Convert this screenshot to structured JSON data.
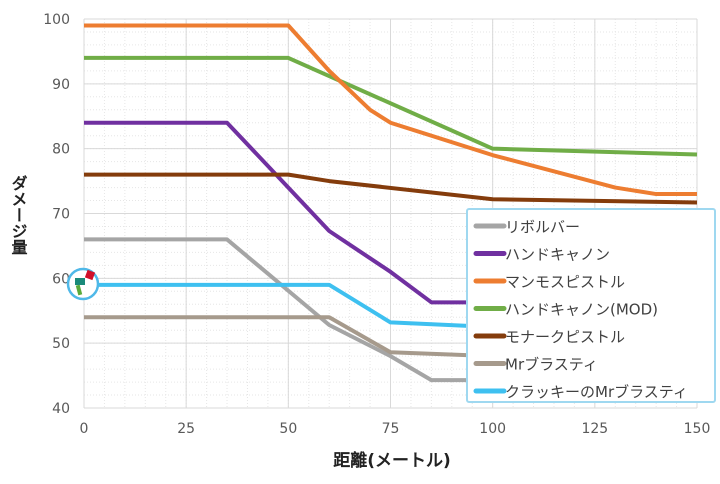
{
  "chart_data": {
    "type": "line",
    "title": "",
    "xlabel": "距離(メートル)",
    "ylabel": "ダメージ量",
    "xlim": [
      0,
      150
    ],
    "ylim": [
      40,
      100
    ],
    "xticks": [
      0,
      25,
      50,
      75,
      100,
      125,
      150
    ],
    "yticks": [
      40,
      50,
      60,
      70,
      80,
      90,
      100
    ],
    "grid": true,
    "legend_position": "bottom-right",
    "series": [
      {
        "name": "リボルバー",
        "color": "#a5a5a5",
        "x": [
          0,
          35,
          60,
          75,
          85,
          150
        ],
        "y": [
          66,
          66,
          52.8,
          48,
          44.3,
          44.3
        ]
      },
      {
        "name": "ハンドキャノン",
        "color": "#7030a0",
        "x": [
          0,
          35,
          50,
          60,
          75,
          85,
          150
        ],
        "y": [
          84,
          84,
          74,
          67.3,
          61,
          56.3,
          56.3
        ]
      },
      {
        "name": "マンモスピストル",
        "color": "#ed7d31",
        "x": [
          0,
          50,
          60,
          70,
          75,
          100,
          130,
          140,
          150
        ],
        "y": [
          99,
          99,
          92,
          86,
          84,
          79,
          74,
          73,
          73
        ]
      },
      {
        "name": "ハンドキャノン(MOD)",
        "color": "#70ad47",
        "x": [
          0,
          50,
          100,
          150
        ],
        "y": [
          94,
          94,
          80,
          79.1
        ]
      },
      {
        "name": "モナークピストル",
        "color": "#843c0c",
        "x": [
          0,
          50,
          60,
          100,
          150
        ],
        "y": [
          76,
          76,
          75,
          72.2,
          71.7
        ]
      },
      {
        "name": "Mrブラスティ",
        "color": "#a69a8c",
        "x": [
          0,
          60,
          75,
          100,
          150
        ],
        "y": [
          54,
          54,
          48.6,
          48,
          48
        ]
      },
      {
        "name": "クラッキーのMrブラスティ",
        "color": "#3ec0f0",
        "x": [
          0,
          60,
          75,
          100,
          150
        ],
        "y": [
          59,
          59,
          53.2,
          52.5,
          52.5
        ]
      }
    ]
  }
}
